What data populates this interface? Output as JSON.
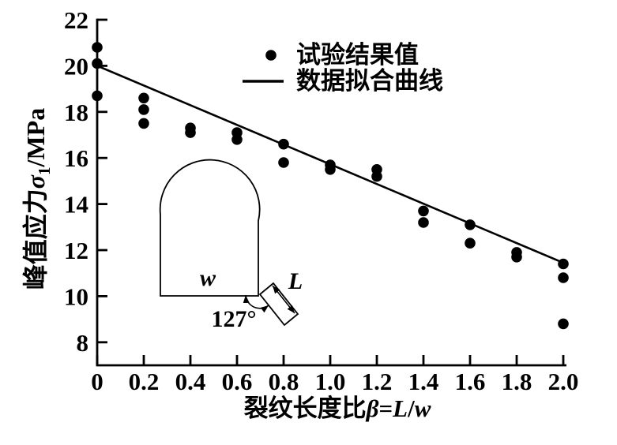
{
  "figure": {
    "background": "#ffffff",
    "ink": "#000000"
  },
  "chart_data": {
    "type": "scatter",
    "title": "",
    "xlabel": "裂纹长度比β=L/w",
    "ylabel": "峰值应力σ1/MPa",
    "xlabel_parts": [
      {
        "text": "裂纹长度比"
      },
      {
        "text": "β",
        "italic": true
      },
      {
        "text": "="
      },
      {
        "text": "L",
        "italic": true
      },
      {
        "text": "/"
      },
      {
        "text": "w",
        "italic": true
      }
    ],
    "ylabel_parts": [
      {
        "text": "峰值应力"
      },
      {
        "text": "σ",
        "italic": true
      },
      {
        "text": "1",
        "sub": true
      },
      {
        "text": "/MPa"
      }
    ],
    "xlim": [
      0,
      2.0
    ],
    "ylim": [
      7,
      22
    ],
    "grid": false,
    "x_ticks": [
      "0",
      "0.2",
      "0.4",
      "0.6",
      "0.8",
      "1.0",
      "1.2",
      "1.4",
      "1.6",
      "1.8",
      "2.0"
    ],
    "x_tick_values": [
      0,
      0.2,
      0.4,
      0.6,
      0.8,
      1.0,
      1.2,
      1.4,
      1.6,
      1.8,
      2.0
    ],
    "y_ticks": [
      "8",
      "10",
      "12",
      "14",
      "16",
      "18",
      "20",
      "22"
    ],
    "y_tick_values": [
      8,
      10,
      12,
      14,
      16,
      18,
      20,
      22
    ],
    "legend": {
      "position": "top-right-inside",
      "entries": [
        {
          "marker": "filled-circle",
          "label": "试验结果值"
        },
        {
          "marker": "line",
          "label": "数据拟合曲线"
        }
      ]
    },
    "series": [
      {
        "name": "试验结果值",
        "type": "scatter",
        "marker": "filled-circle",
        "color": "#000000",
        "points": [
          [
            0,
            20.8
          ],
          [
            0,
            20.1
          ],
          [
            0,
            18.7
          ],
          [
            0.2,
            18.6
          ],
          [
            0.2,
            18.1
          ],
          [
            0.2,
            17.5
          ],
          [
            0.4,
            17.3
          ],
          [
            0.4,
            17.1
          ],
          [
            0.6,
            17.1
          ],
          [
            0.6,
            16.8
          ],
          [
            0.8,
            16.6
          ],
          [
            0.8,
            15.8
          ],
          [
            1.0,
            15.7
          ],
          [
            1.0,
            15.5
          ],
          [
            1.2,
            15.5
          ],
          [
            1.2,
            15.2
          ],
          [
            1.4,
            13.7
          ],
          [
            1.4,
            13.2
          ],
          [
            1.6,
            13.1
          ],
          [
            1.6,
            12.3
          ],
          [
            1.8,
            11.9
          ],
          [
            1.8,
            11.7
          ],
          [
            2.0,
            11.4
          ],
          [
            2.0,
            10.8
          ],
          [
            2.0,
            8.8
          ]
        ]
      },
      {
        "name": "数据拟合曲线",
        "type": "line",
        "color": "#000000",
        "points": [
          [
            0,
            20.0
          ],
          [
            2.0,
            11.45
          ]
        ]
      }
    ]
  },
  "inset": {
    "description": "tunnel cross-section with corner crack",
    "width_label": "w",
    "crack_length_label": "L",
    "angle_label": "127°"
  }
}
